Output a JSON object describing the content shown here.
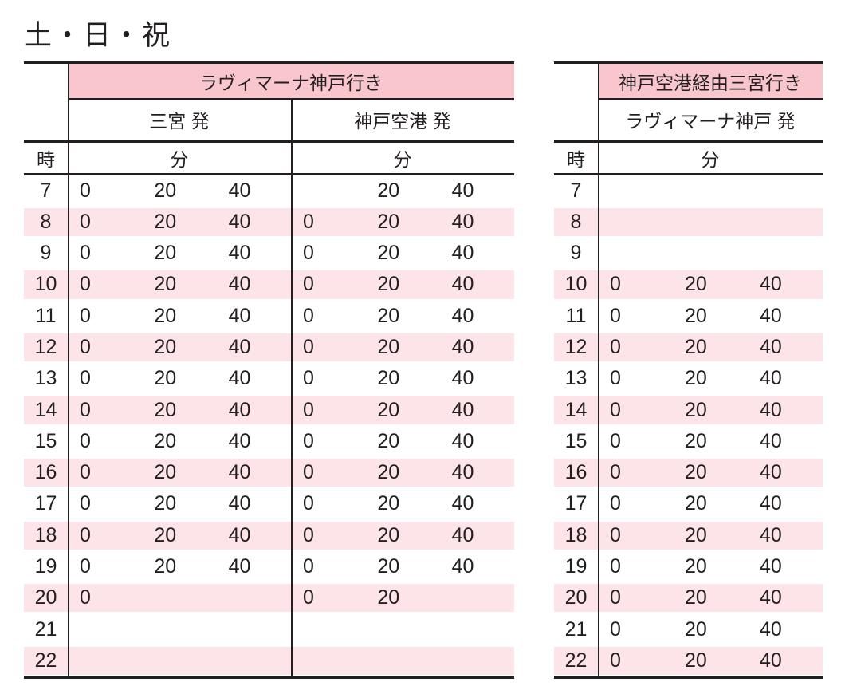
{
  "title": "土・日・祝",
  "colors": {
    "ink": "#231f20",
    "header-pink": "#f9c6cd",
    "row-pink": "#fce4e8"
  },
  "left_table": {
    "route_header": "ラヴィマーナ神戸行き",
    "sub_headers": [
      "三宮 発",
      "神戸空港 発"
    ],
    "hour_label": "時",
    "minute_labels": [
      "分",
      "分"
    ],
    "rows": [
      {
        "hour": "7",
        "sannomiya": [
          "0",
          "20",
          "40"
        ],
        "kobe_airport": [
          "",
          "20",
          "40"
        ]
      },
      {
        "hour": "8",
        "sannomiya": [
          "0",
          "20",
          "40"
        ],
        "kobe_airport": [
          "0",
          "20",
          "40"
        ]
      },
      {
        "hour": "9",
        "sannomiya": [
          "0",
          "20",
          "40"
        ],
        "kobe_airport": [
          "0",
          "20",
          "40"
        ]
      },
      {
        "hour": "10",
        "sannomiya": [
          "0",
          "20",
          "40"
        ],
        "kobe_airport": [
          "0",
          "20",
          "40"
        ]
      },
      {
        "hour": "11",
        "sannomiya": [
          "0",
          "20",
          "40"
        ],
        "kobe_airport": [
          "0",
          "20",
          "40"
        ]
      },
      {
        "hour": "12",
        "sannomiya": [
          "0",
          "20",
          "40"
        ],
        "kobe_airport": [
          "0",
          "20",
          "40"
        ]
      },
      {
        "hour": "13",
        "sannomiya": [
          "0",
          "20",
          "40"
        ],
        "kobe_airport": [
          "0",
          "20",
          "40"
        ]
      },
      {
        "hour": "14",
        "sannomiya": [
          "0",
          "20",
          "40"
        ],
        "kobe_airport": [
          "0",
          "20",
          "40"
        ]
      },
      {
        "hour": "15",
        "sannomiya": [
          "0",
          "20",
          "40"
        ],
        "kobe_airport": [
          "0",
          "20",
          "40"
        ]
      },
      {
        "hour": "16",
        "sannomiya": [
          "0",
          "20",
          "40"
        ],
        "kobe_airport": [
          "0",
          "20",
          "40"
        ]
      },
      {
        "hour": "17",
        "sannomiya": [
          "0",
          "20",
          "40"
        ],
        "kobe_airport": [
          "0",
          "20",
          "40"
        ]
      },
      {
        "hour": "18",
        "sannomiya": [
          "0",
          "20",
          "40"
        ],
        "kobe_airport": [
          "0",
          "20",
          "40"
        ]
      },
      {
        "hour": "19",
        "sannomiya": [
          "0",
          "20",
          "40"
        ],
        "kobe_airport": [
          "0",
          "20",
          "40"
        ]
      },
      {
        "hour": "20",
        "sannomiya": [
          "0",
          "",
          ""
        ],
        "kobe_airport": [
          "0",
          "20",
          ""
        ]
      },
      {
        "hour": "21",
        "sannomiya": [
          "",
          "",
          ""
        ],
        "kobe_airport": [
          "",
          "",
          ""
        ]
      },
      {
        "hour": "22",
        "sannomiya": [
          "",
          "",
          ""
        ],
        "kobe_airport": [
          "",
          "",
          ""
        ]
      }
    ]
  },
  "right_table": {
    "route_header": "神戸空港経由三宮行き",
    "sub_header": "ラヴィマーナ神戸 発",
    "hour_label": "時",
    "minute_label": "分",
    "rows": [
      {
        "hour": "7",
        "minutes": [
          "",
          "",
          ""
        ]
      },
      {
        "hour": "8",
        "minutes": [
          "",
          "",
          ""
        ]
      },
      {
        "hour": "9",
        "minutes": [
          "",
          "",
          ""
        ]
      },
      {
        "hour": "10",
        "minutes": [
          "0",
          "20",
          "40"
        ]
      },
      {
        "hour": "11",
        "minutes": [
          "0",
          "20",
          "40"
        ]
      },
      {
        "hour": "12",
        "minutes": [
          "0",
          "20",
          "40"
        ]
      },
      {
        "hour": "13",
        "minutes": [
          "0",
          "20",
          "40"
        ]
      },
      {
        "hour": "14",
        "minutes": [
          "0",
          "20",
          "40"
        ]
      },
      {
        "hour": "15",
        "minutes": [
          "0",
          "20",
          "40"
        ]
      },
      {
        "hour": "16",
        "minutes": [
          "0",
          "20",
          "40"
        ]
      },
      {
        "hour": "17",
        "minutes": [
          "0",
          "20",
          "40"
        ]
      },
      {
        "hour": "18",
        "minutes": [
          "0",
          "20",
          "40"
        ]
      },
      {
        "hour": "19",
        "minutes": [
          "0",
          "20",
          "40"
        ]
      },
      {
        "hour": "20",
        "minutes": [
          "0",
          "20",
          "40"
        ]
      },
      {
        "hour": "21",
        "minutes": [
          "0",
          "20",
          "40"
        ]
      },
      {
        "hour": "22",
        "minutes": [
          "0",
          "20",
          "40"
        ]
      }
    ]
  }
}
